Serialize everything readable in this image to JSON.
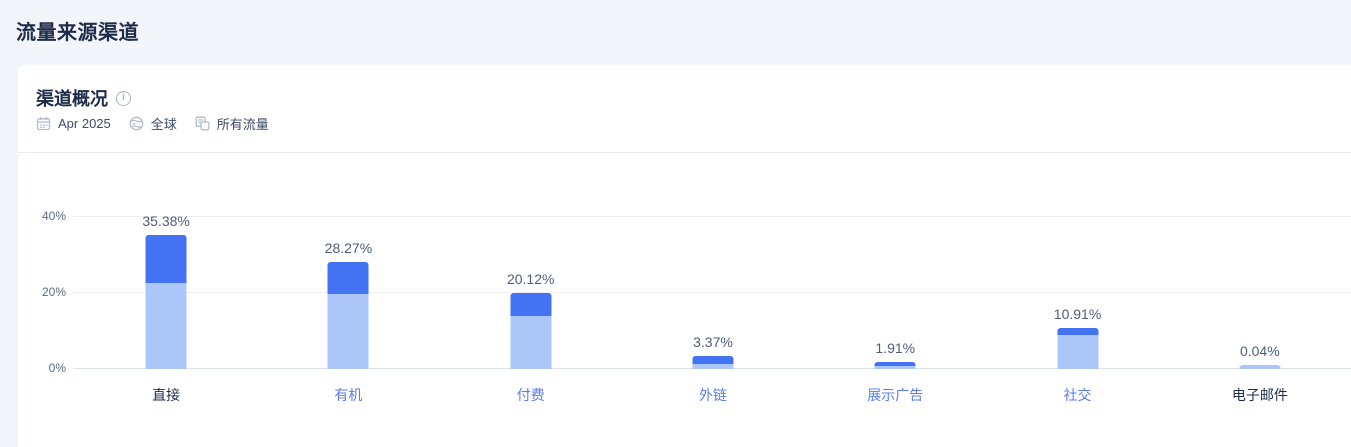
{
  "page": {
    "title": "流量来源渠道"
  },
  "card": {
    "heading": "渠道概况",
    "info_icon": "info-icon",
    "meta": {
      "calendar_icon": "calendar-icon",
      "date": "Apr 2025",
      "globe_icon": "globe-icon",
      "region": "全球",
      "segments_icon": "traffic-segments-icon",
      "traffic_filter": "所有流量"
    }
  },
  "colors": {
    "page_background": "#f2f5f9",
    "card_background": "#ffffff",
    "bar_dark": "#4373f2",
    "bar_light": "#abc7f9",
    "link_blue": "#5a7cf0",
    "dark_text": "#1d2b49",
    "value_label": "#4e5e78",
    "tick_label": "#5b6b83"
  },
  "chart_data": {
    "type": "bar",
    "stacked": true,
    "title": "渠道概况",
    "xlabel": "",
    "ylabel": "",
    "ylim": [
      0,
      40
    ],
    "grid": true,
    "y_ticks": [
      0,
      20,
      40
    ],
    "y_tick_labels": [
      "0%",
      "20%",
      "40%"
    ],
    "categories": [
      {
        "label": "直接",
        "link": false
      },
      {
        "label": "有机",
        "link": true
      },
      {
        "label": "付费",
        "link": true
      },
      {
        "label": "外链",
        "link": true
      },
      {
        "label": "展示广告",
        "link": true
      },
      {
        "label": "社交",
        "link": true
      },
      {
        "label": "电子邮件",
        "link": false
      }
    ],
    "totals": [
      35.38,
      28.27,
      20.12,
      3.37,
      1.91,
      10.91,
      0.04
    ],
    "total_labels": [
      "35.38%",
      "28.27%",
      "20.12%",
      "3.37%",
      "1.91%",
      "10.91%",
      "0.04%"
    ],
    "series": [
      {
        "name": "light-segment",
        "color": "#abc7f9",
        "values": [
          22.6,
          19.7,
          14.07,
          1.3,
          0.7,
          9.0,
          0.04
        ]
      },
      {
        "name": "dark-segment",
        "color": "#4373f2",
        "values": [
          12.78,
          8.57,
          6.05,
          2.07,
          1.21,
          1.91,
          0.0
        ]
      }
    ]
  }
}
